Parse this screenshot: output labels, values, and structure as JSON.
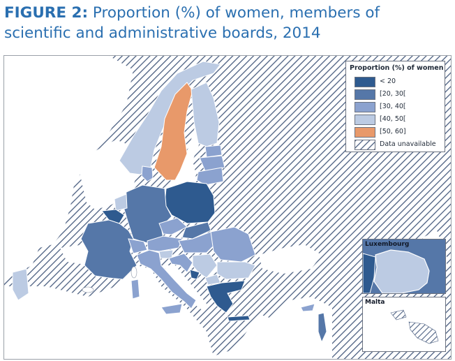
{
  "figure": {
    "label": "FIGURE 2:",
    "title": "Proportion (%) of women, members of scientific and administrative boards, 2014"
  },
  "legend": {
    "title": "Proportion (%) of women",
    "items": [
      {
        "label": "< 20",
        "color": "#2e5a8f"
      },
      {
        "label": "[20, 30[",
        "color": "#5577a8"
      },
      {
        "label": "[30, 40[",
        "color": "#8ba2cf"
      },
      {
        "label": "[40, 50[",
        "color": "#bccbe3"
      },
      {
        "label": "[50, 60]",
        "color": "#e8996a"
      },
      {
        "label": "Data unavailable",
        "color": "hatched"
      }
    ]
  },
  "insets": {
    "luxembourg": "Luxembourg",
    "malta": "Malta"
  },
  "colors": {
    "hatch_line": "#4a5e80",
    "land_unavailable": "#ffffff",
    "border": "#ffffff"
  },
  "countries": [
    {
      "name": "Sweden",
      "class": "[50, 60]"
    },
    {
      "name": "Norway",
      "class": "[40, 50["
    },
    {
      "name": "Finland",
      "class": "[40, 50["
    },
    {
      "name": "Iceland",
      "class": "Data unavailable"
    },
    {
      "name": "Denmark",
      "class": "[30, 40["
    },
    {
      "name": "Estonia",
      "class": "[30, 40["
    },
    {
      "name": "Latvia",
      "class": "[30, 40["
    },
    {
      "name": "Lithuania",
      "class": "[30, 40["
    },
    {
      "name": "Poland",
      "class": "< 20"
    },
    {
      "name": "Germany",
      "class": "[20, 30["
    },
    {
      "name": "Netherlands",
      "class": "[40, 50["
    },
    {
      "name": "Belgium",
      "class": "< 20"
    },
    {
      "name": "Luxembourg",
      "class": "[40, 50["
    },
    {
      "name": "France",
      "class": "[20, 30["
    },
    {
      "name": "Czechia",
      "class": "[30, 40["
    },
    {
      "name": "Slovakia",
      "class": "[20, 30["
    },
    {
      "name": "Austria",
      "class": "[30, 40["
    },
    {
      "name": "Hungary",
      "class": "[30, 40["
    },
    {
      "name": "Romania",
      "class": "[30, 40["
    },
    {
      "name": "Bulgaria",
      "class": "[40, 50["
    },
    {
      "name": "Slovenia",
      "class": "[40, 50["
    },
    {
      "name": "Croatia",
      "class": "[30, 40["
    },
    {
      "name": "Serbia",
      "class": "[40, 50["
    },
    {
      "name": "Montenegro",
      "class": "< 20"
    },
    {
      "name": "North Macedonia",
      "class": "[40, 50["
    },
    {
      "name": "Greece",
      "class": "< 20"
    },
    {
      "name": "Italy",
      "class": "[30, 40["
    },
    {
      "name": "Switzerland",
      "class": "[30, 40["
    },
    {
      "name": "Portugal",
      "class": "[40, 50["
    },
    {
      "name": "Spain",
      "class": "Data unavailable"
    },
    {
      "name": "United Kingdom",
      "class": "Data unavailable"
    },
    {
      "name": "Ireland",
      "class": "Data unavailable"
    },
    {
      "name": "Cyprus",
      "class": "[30, 40["
    },
    {
      "name": "Israel",
      "class": "[20, 30["
    },
    {
      "name": "Turkey",
      "class": "Data unavailable"
    },
    {
      "name": "Malta",
      "class": "Data unavailable"
    }
  ]
}
